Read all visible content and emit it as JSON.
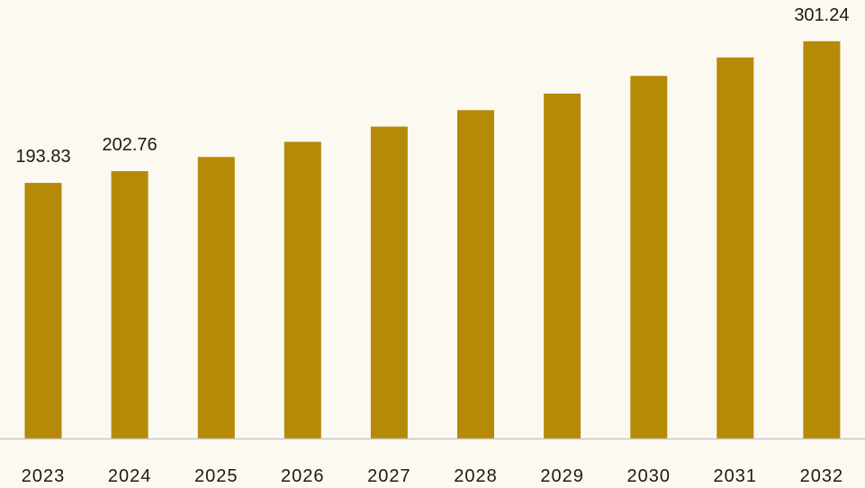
{
  "colors": {
    "background": "#fcf9f1",
    "bar": "#b58a06",
    "baseline": "#c8c8c8",
    "text": "#1a1a1a"
  },
  "chart_data": {
    "type": "bar",
    "title": "",
    "xlabel": "",
    "ylabel": "",
    "categories": [
      "2023",
      "2024",
      "2025",
      "2026",
      "2027",
      "2028",
      "2029",
      "2030",
      "2031",
      "2032"
    ],
    "values": [
      193.83,
      202.76,
      213.5,
      225.0,
      236.5,
      249.0,
      261.5,
      275.0,
      289.0,
      301.24
    ],
    "data_labels": [
      {
        "index": 0,
        "text": "193.83"
      },
      {
        "index": 1,
        "text": "202.76"
      },
      {
        "index": 9,
        "text": "301.24"
      }
    ],
    "ylim": [
      0,
      310
    ],
    "grid": false,
    "legend": "none"
  }
}
